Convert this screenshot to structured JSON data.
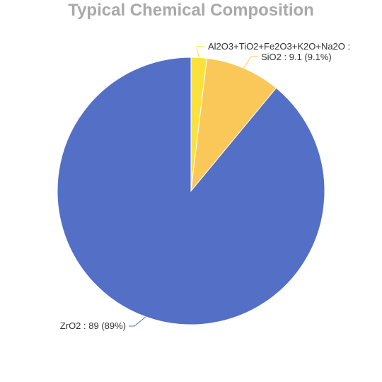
{
  "chart_data": {
    "type": "pie",
    "title": "Typical Chemical Composition",
    "slices": [
      {
        "name": "Al2O3+TiO2+Fe2O3+K2O+Na2O",
        "label": "Al2O3+TiO2+Fe2O3+K2O+Na2O :",
        "value": 1.9,
        "color": "#fae13c"
      },
      {
        "name": "SiO2",
        "label": "SiO2 : 9.1 (9.1%)",
        "value": 9.1,
        "color": "#fac858"
      },
      {
        "name": "ZrO2",
        "label": "ZrO2 : 89 (89%)",
        "value": 89,
        "color": "#5470c6"
      }
    ],
    "legend": "none"
  }
}
